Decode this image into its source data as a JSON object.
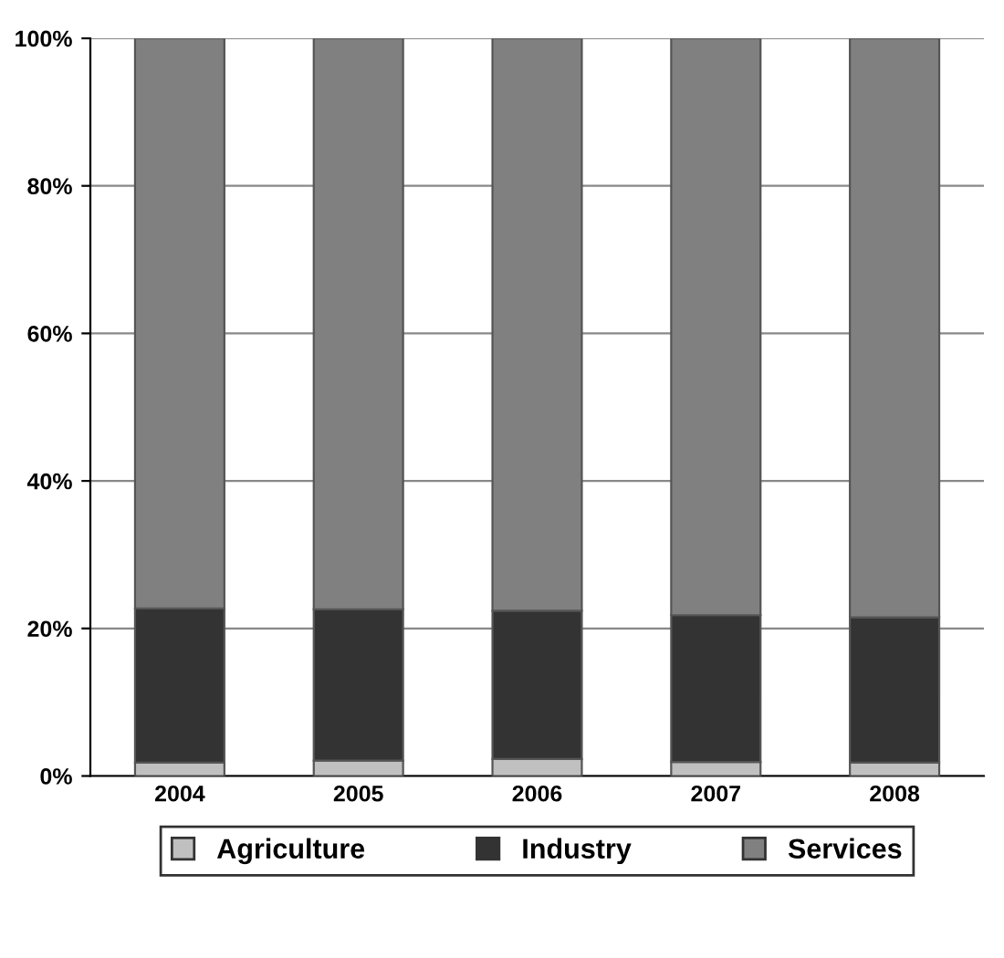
{
  "chart_data": {
    "type": "bar",
    "stacked": true,
    "categories": [
      "2004",
      "2005",
      "2006",
      "2007",
      "2008"
    ],
    "series": [
      {
        "name": "Agriculture",
        "color": "#c0c0c0",
        "values": [
          1.8,
          2.1,
          2.3,
          1.9,
          1.8
        ]
      },
      {
        "name": "Industry",
        "color": "#333333",
        "values": [
          20.9,
          20.5,
          20.1,
          19.9,
          19.7
        ]
      },
      {
        "name": "Services",
        "color": "#808080",
        "values": [
          77.3,
          77.4,
          77.6,
          78.2,
          78.5
        ]
      }
    ],
    "ylim": [
      0,
      100
    ],
    "yticks": [
      {
        "value": 0,
        "label": "0%"
      },
      {
        "value": 20,
        "label": "20%"
      },
      {
        "value": 40,
        "label": "40%"
      },
      {
        "value": 60,
        "label": "60%"
      },
      {
        "value": 80,
        "label": "80%"
      },
      {
        "value": 100,
        "label": "100%"
      }
    ],
    "grid": "y",
    "legend": "bottom"
  }
}
